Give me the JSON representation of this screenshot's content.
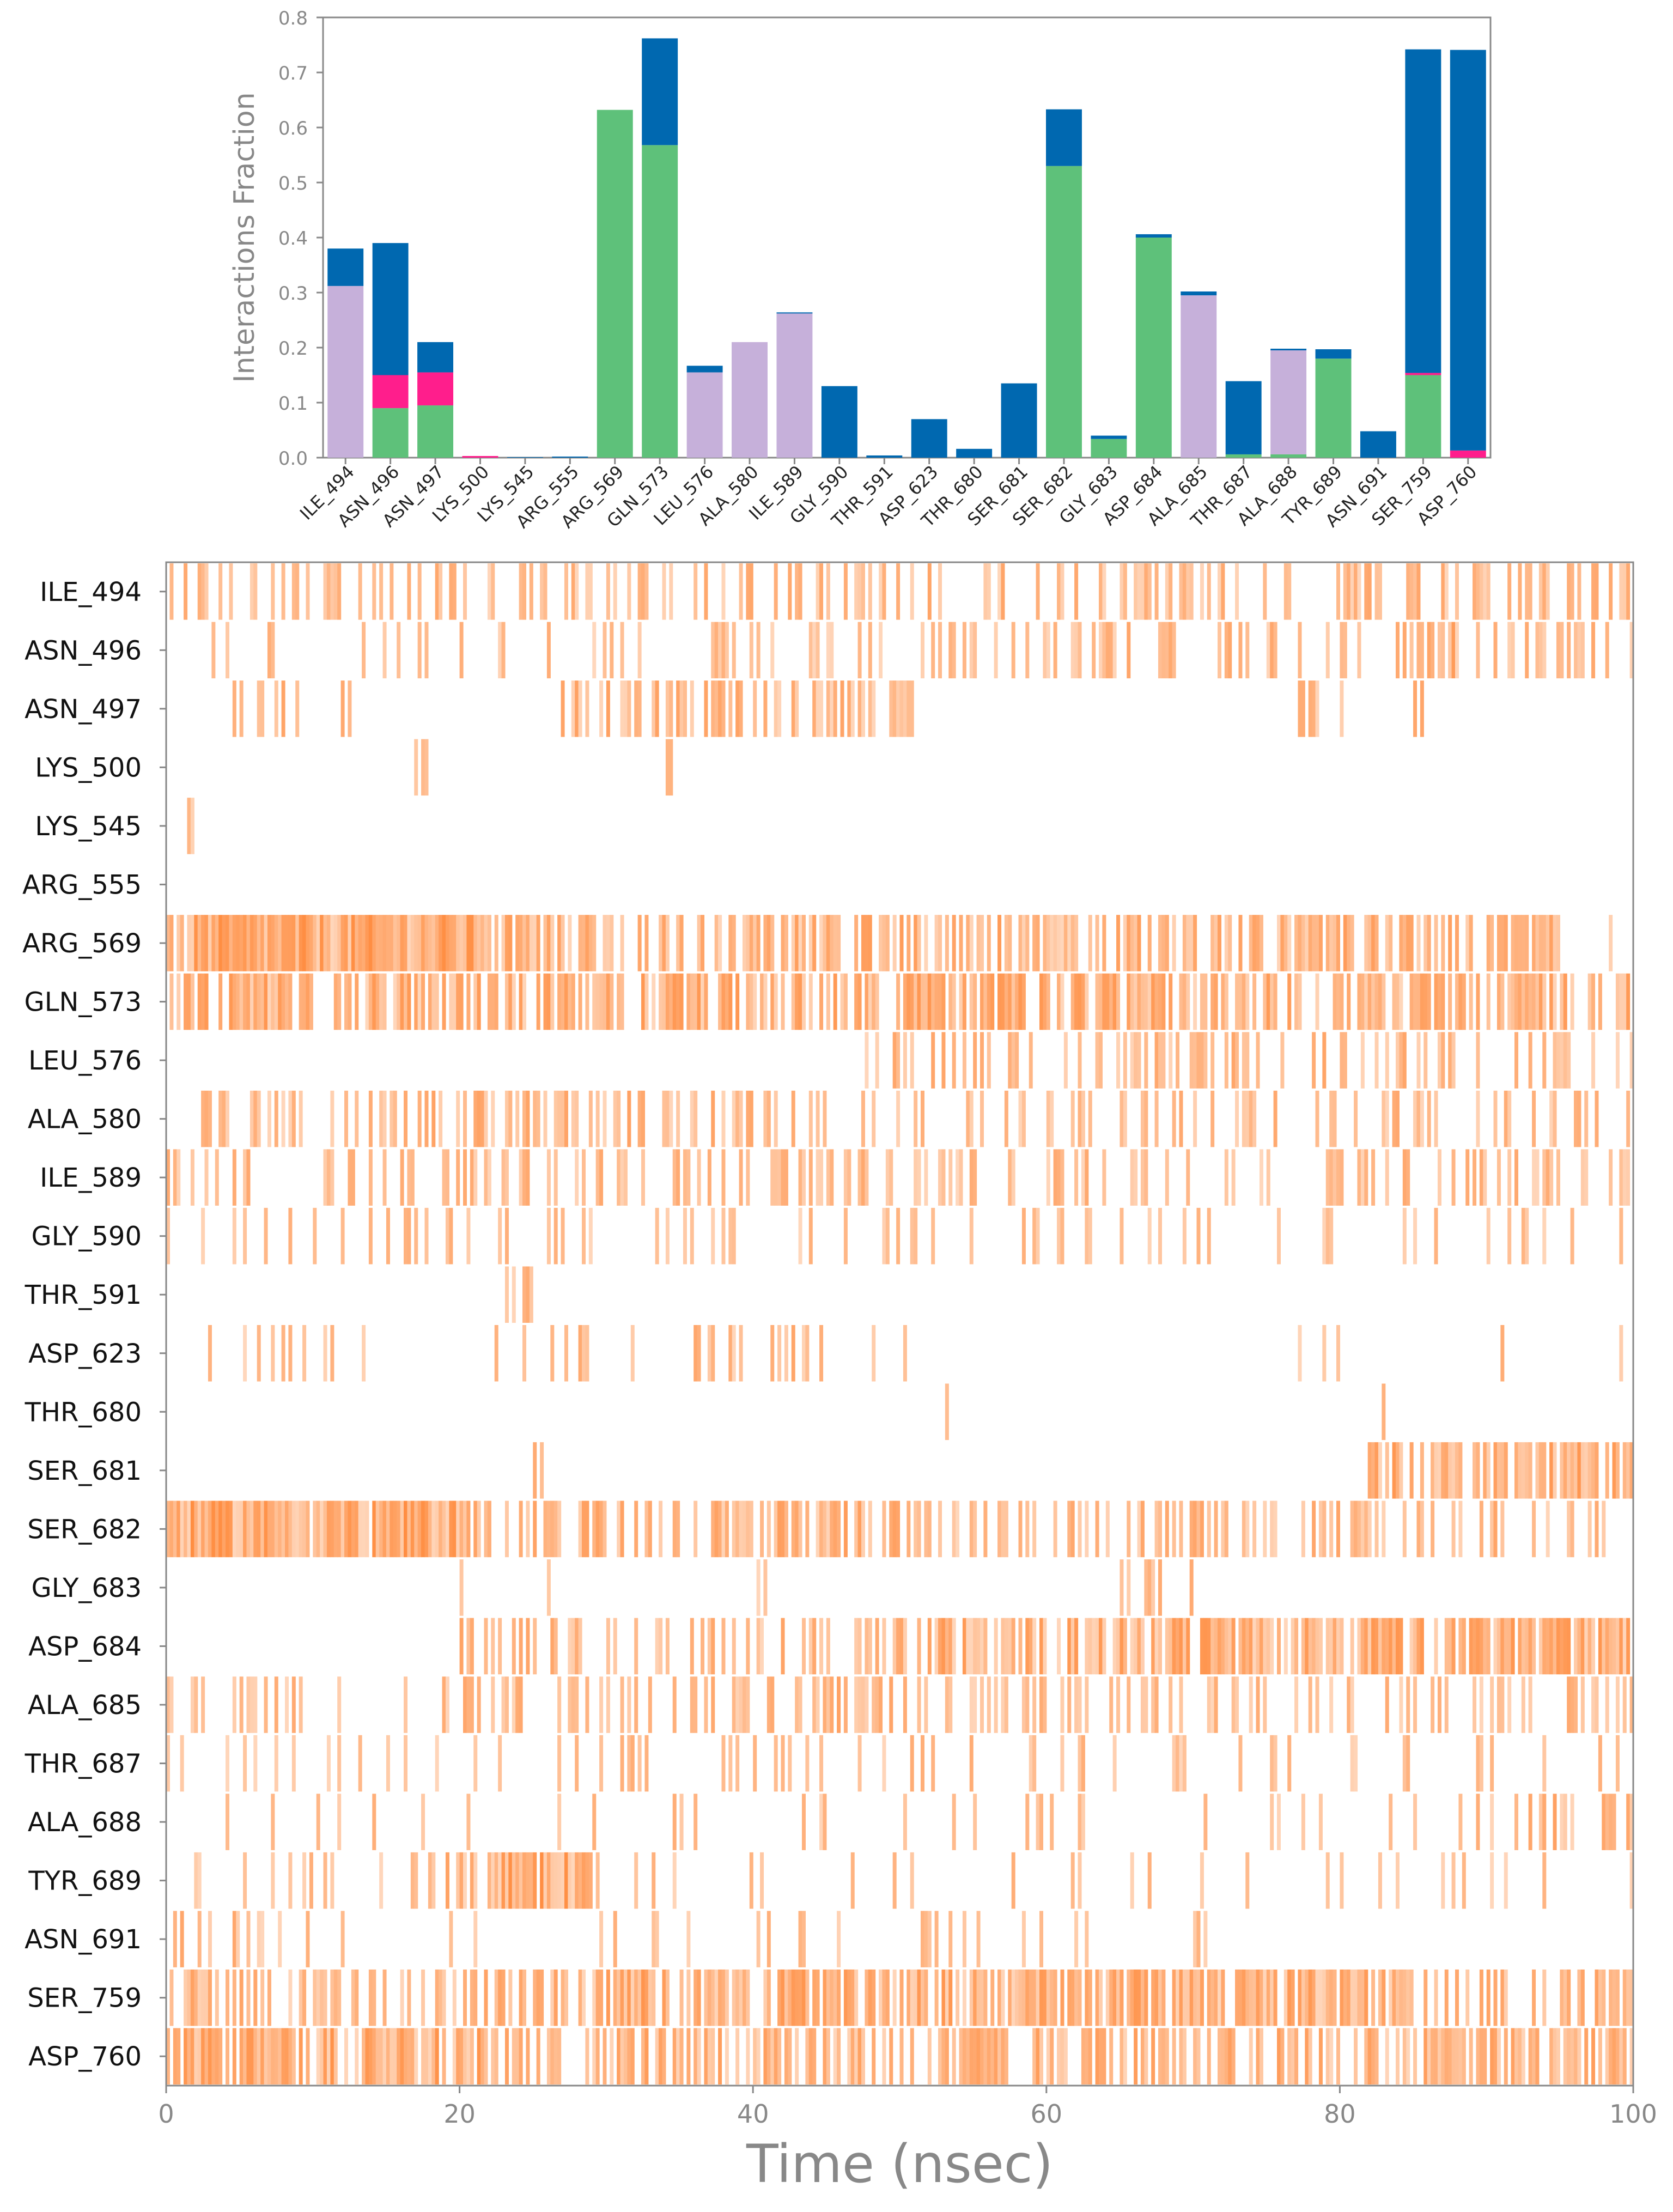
{
  "figure": {
    "colors": {
      "hbond": "#5ec17a",
      "hydrophobic": "#c6b0da",
      "ionic": "#ff1e8c",
      "water_bridge": "#0068b0",
      "axis": "#888888",
      "tick_text": "#888888",
      "heatmap": "#ff8c3f"
    }
  },
  "chart_data": [
    {
      "type": "bar",
      "stacked": true,
      "ylabel": "Interactions Fraction",
      "xlabel": "",
      "ylim": [
        0,
        0.8
      ],
      "yticks": [
        "0.0",
        "0.1",
        "0.2",
        "0.3",
        "0.4",
        "0.5",
        "0.6",
        "0.7",
        "0.8"
      ],
      "categories": [
        "ILE_494",
        "ASN_496",
        "ASN_497",
        "LYS_500",
        "LYS_545",
        "ARG_555",
        "ARG_569",
        "GLN_573",
        "LEU_576",
        "ALA_580",
        "ILE_589",
        "GLY_590",
        "THR_591",
        "ASP_623",
        "THR_680",
        "SER_681",
        "SER_682",
        "GLY_683",
        "ASP_684",
        "ALA_685",
        "THR_687",
        "ALA_688",
        "TYR_689",
        "ASN_691",
        "SER_759",
        "ASP_760"
      ],
      "series": [
        {
          "key": "hbond",
          "values": [
            0,
            0.09,
            0.095,
            0,
            0,
            0,
            0.632,
            0.568,
            0,
            0,
            0,
            0,
            0,
            0,
            0,
            0,
            0.53,
            0.034,
            0.4,
            0,
            0.006,
            0.006,
            0.18,
            0,
            0.15,
            0
          ]
        },
        {
          "key": "hydrophobic",
          "values": [
            0.312,
            0,
            0,
            0,
            0,
            0,
            0,
            0,
            0.155,
            0.21,
            0.262,
            0,
            0,
            0,
            0,
            0,
            0,
            0,
            0,
            0.295,
            0,
            0.189,
            0,
            0,
            0,
            0
          ]
        },
        {
          "key": "ionic",
          "values": [
            0,
            0.06,
            0.06,
            0.003,
            0,
            0,
            0,
            0,
            0,
            0,
            0,
            0,
            0,
            0,
            0,
            0,
            0,
            0,
            0,
            0,
            0,
            0,
            0,
            0,
            0.004,
            0.013
          ]
        },
        {
          "key": "water_bridge",
          "values": [
            0.068,
            0.24,
            0.055,
            0,
            0.001,
            0.002,
            0,
            0.194,
            0.012,
            0,
            0.002,
            0.13,
            0.004,
            0.07,
            0.016,
            0.135,
            0.103,
            0.006,
            0.006,
            0.007,
            0.133,
            0.003,
            0.017,
            0.048,
            0.588,
            0.728
          ]
        }
      ]
    },
    {
      "type": "heatmap",
      "xlabel": "Time (nsec)",
      "xlim": [
        0,
        100
      ],
      "xticks": [
        "0",
        "20",
        "40",
        "60",
        "80",
        "100"
      ],
      "rows": [
        "ILE_494",
        "ASN_496",
        "ASN_497",
        "LYS_500",
        "LYS_545",
        "ARG_555",
        "ARG_569",
        "GLN_573",
        "LEU_576",
        "ALA_580",
        "ILE_589",
        "GLY_590",
        "THR_591",
        "ASP_623",
        "THR_680",
        "SER_681",
        "SER_682",
        "GLY_683",
        "ASP_684",
        "ALA_685",
        "THR_687",
        "ALA_688",
        "TYR_689",
        "ASN_691",
        "SER_759",
        "ASP_760"
      ],
      "row_activity": [
        [
          [
            0,
            100,
            0.35
          ]
        ],
        [
          [
            0,
            100,
            0.14
          ],
          [
            51,
            100,
            0.3
          ],
          [
            85,
            88,
            0.7
          ]
        ],
        [
          [
            4,
            9,
            0.4
          ],
          [
            12,
            13,
            0.4
          ],
          [
            27,
            51,
            0.5
          ],
          [
            77,
            81,
            0.35
          ],
          [
            85,
            87,
            0.3
          ]
        ],
        [
          [
            17,
            18,
            0.4
          ],
          [
            34,
            34.5,
            0.4
          ]
        ],
        [
          [
            1.5,
            2,
            0.5
          ],
          [
            5,
            5.2,
            0.3
          ]
        ],
        [
          [
            37,
            37.3,
            0.4
          ],
          [
            79,
            79.3,
            0.3
          ]
        ],
        [
          [
            0,
            22,
            0.95
          ],
          [
            22,
            95,
            0.6
          ],
          [
            95,
            100,
            0.05
          ]
        ],
        [
          [
            0,
            100,
            0.7
          ]
        ],
        [
          [
            13,
            13.3,
            0.3
          ],
          [
            46,
            100,
            0.35
          ]
        ],
        [
          [
            0,
            14,
            0.2
          ],
          [
            14,
            42,
            0.45
          ],
          [
            42,
            100,
            0.25
          ]
        ],
        [
          [
            0,
            100,
            0.27
          ]
        ],
        [
          [
            0,
            100,
            0.15
          ]
        ],
        [
          [
            20,
            21,
            0.3
          ],
          [
            23,
            25,
            0.3
          ]
        ],
        [
          [
            2,
            15,
            0.12
          ],
          [
            22,
            29,
            0.2
          ],
          [
            31,
            32,
            0.2
          ],
          [
            36,
            44,
            0.35
          ],
          [
            44,
            51,
            0.1
          ],
          [
            77,
            80,
            0.3
          ],
          [
            91,
            91.3,
            0.3
          ],
          [
            99,
            99.3,
            0.3
          ]
        ],
        [
          [
            5.5,
            5.8,
            0.3
          ],
          [
            22,
            23,
            0.3
          ],
          [
            53,
            55,
            0.3
          ],
          [
            82,
            85,
            0.3
          ]
        ],
        [
          [
            3,
            3.2,
            0.3
          ],
          [
            25,
            26,
            0.3
          ],
          [
            53,
            54,
            0.5
          ],
          [
            82,
            100,
            0.7
          ]
        ],
        [
          [
            0,
            20,
            0.95
          ],
          [
            20,
            53,
            0.55
          ],
          [
            53,
            100,
            0.35
          ]
        ],
        [
          [
            20,
            21,
            0.3
          ],
          [
            26,
            27,
            0.3
          ],
          [
            40,
            41,
            0.3
          ],
          [
            65,
            71,
            0.25
          ],
          [
            80,
            81,
            0.3
          ]
        ],
        [
          [
            20,
            100,
            0.4
          ],
          [
            52,
            100,
            0.75
          ]
        ],
        [
          [
            0,
            100,
            0.25
          ],
          [
            20,
            30,
            0.45
          ],
          [
            41,
            50,
            0.45
          ]
        ],
        [
          [
            0,
            100,
            0.15
          ]
        ],
        [
          [
            0,
            100,
            0.12
          ],
          [
            89,
            100,
            0.45
          ]
        ],
        [
          [
            0,
            100,
            0.12
          ],
          [
            19,
            22,
            0.5
          ],
          [
            22,
            29,
            0.95
          ]
        ],
        [
          [
            0,
            5,
            0.3
          ],
          [
            5,
            80,
            0.06
          ]
        ],
        [
          [
            0,
            100,
            0.45
          ],
          [
            27,
            82,
            0.75
          ]
        ],
        [
          [
            0,
            100,
            0.55
          ],
          [
            0,
            22,
            0.85
          ]
        ]
      ]
    }
  ]
}
